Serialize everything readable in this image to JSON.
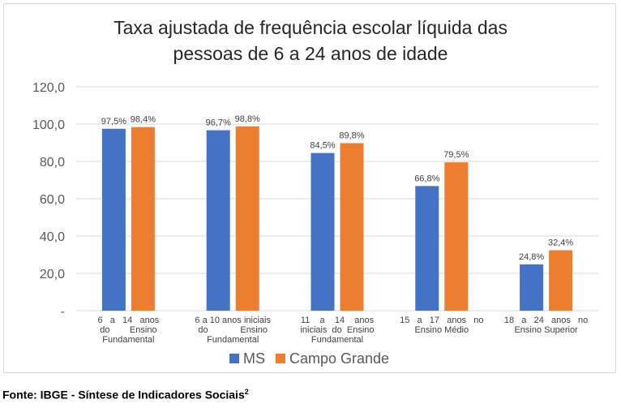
{
  "chart_data": {
    "type": "bar",
    "title_lines": [
      "Taxa ajustada de frequência escolar líquida das",
      "pessoas de 6 a 24 anos de idade"
    ],
    "categories": [
      [
        "6   a   14   anos",
        "do        Ensino",
        "Fundamental"
      ],
      [
        "6 a 10 anos iniciais",
        "do             Ensino",
        "Fundamental"
      ],
      [
        "11    a    14    anos",
        "iniciais  do  Ensino",
        "Fundamental"
      ],
      [
        "15   a   17   anos   no",
        "Ensino Médio"
      ],
      [
        "18   a   24   anos   no",
        "Ensino Superior"
      ]
    ],
    "series": [
      {
        "name": "MS",
        "color": "#4472c4",
        "values": [
          97.5,
          96.7,
          84.5,
          66.8,
          24.8
        ],
        "labels": [
          "97,5%",
          "96,7%",
          "84,5%",
          "66,8%",
          "24,8%"
        ]
      },
      {
        "name": "Campo Grande",
        "color": "#ed7d31",
        "values": [
          98.4,
          98.8,
          89.8,
          79.5,
          32.4
        ],
        "labels": [
          "98,4%",
          "98,8%",
          "89,8%",
          "79,5%",
          "32,4%"
        ]
      }
    ],
    "ylim": [
      0,
      120
    ],
    "yticks": [
      0,
      20,
      40,
      60,
      80,
      100,
      120
    ],
    "ytick_labels": [
      "-",
      "20,0",
      "40,0",
      "60,0",
      "80,0",
      "100,0",
      "120,0"
    ],
    "grid": true,
    "legend_position": "bottom"
  },
  "source": {
    "text": "Fonte: IBGE - Síntese de Indicadores Sociais",
    "superscript": "2"
  }
}
